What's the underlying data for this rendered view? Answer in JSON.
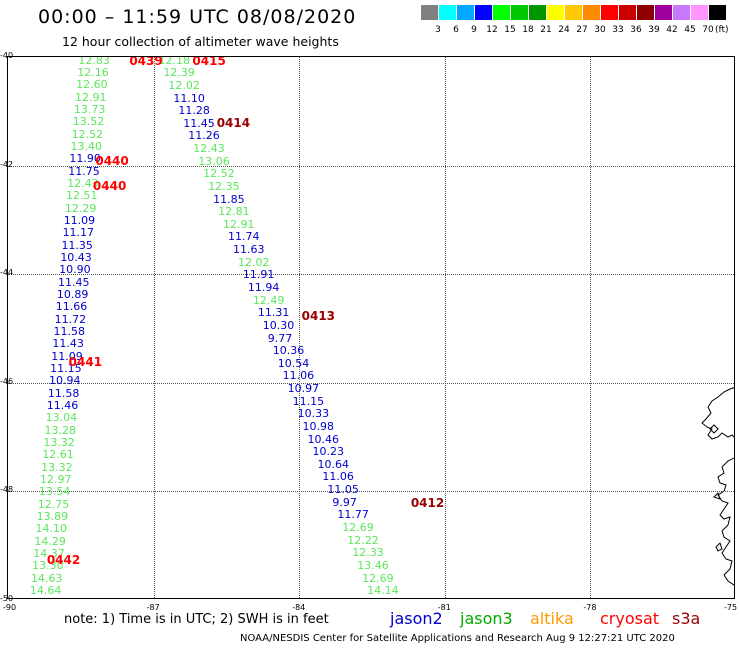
{
  "title": "00:00 – 11:59 UTC 08/08/2020",
  "subtitle": "12 hour collection of altimeter wave heights",
  "legend": {
    "unit": "(ft)",
    "bins": [
      {
        "label": "3",
        "color": "#808080"
      },
      {
        "label": "6",
        "color": "#00ffff"
      },
      {
        "label": "9",
        "color": "#00a8ff"
      },
      {
        "label": "12",
        "color": "#0000ff"
      },
      {
        "label": "15",
        "color": "#00ff00"
      },
      {
        "label": "18",
        "color": "#00c800"
      },
      {
        "label": "21",
        "color": "#009600"
      },
      {
        "label": "24",
        "color": "#ffff00"
      },
      {
        "label": "27",
        "color": "#ffc800"
      },
      {
        "label": "30",
        "color": "#ff8c00"
      },
      {
        "label": "33",
        "color": "#ff0000"
      },
      {
        "label": "36",
        "color": "#c80000"
      },
      {
        "label": "39",
        "color": "#8c0000"
      },
      {
        "label": "42",
        "color": "#a000a0"
      },
      {
        "label": "45",
        "color": "#c878ff"
      },
      {
        "label": "70",
        "color": "#ff96ff"
      },
      {
        "label": "",
        "color": "#000000"
      }
    ]
  },
  "axes": {
    "lon_labels": [
      "-90",
      "-87",
      "-84",
      "-81",
      "-78",
      "-75"
    ],
    "lat_labels": [
      "-40",
      "-42",
      "-44",
      "-46",
      "-48",
      "-50"
    ],
    "lon_range": [
      -90,
      -75
    ],
    "lat_range": [
      -40,
      -50
    ]
  },
  "colors": {
    "light_green": "#5ce65c",
    "dark_blue": "#0000cc",
    "red": "#ff0000",
    "dark_red": "#990000"
  },
  "tracks": [
    {
      "name": "track-a",
      "color": "light_green",
      "lon_start": -88.55,
      "lon_end": -89.55,
      "lat_start": -40.03,
      "lat_end": -49.8,
      "values": [
        "12.83",
        "12.16",
        "12.60",
        "12.91",
        "13.73",
        "13.52",
        "12.52",
        "13.40",
        "11.90",
        "11.75",
        "12.43",
        "12.51",
        "12.29",
        "11.09",
        "11.17",
        "11.35",
        "10.43",
        "10.90",
        "11.45",
        "10.89",
        "11.66",
        "11.72",
        "11.58",
        "11.43",
        "11.09",
        "11.15",
        "10.94",
        "11.58",
        "11.46",
        "13.04",
        "13.28",
        "13.32",
        "12.61",
        "13.32",
        "12.97",
        "13.54",
        "12.75",
        "13.89",
        "14.10",
        "14.29",
        "14.37",
        "13.30",
        "14.63",
        "14.64"
      ],
      "blue_indices": [
        8,
        9,
        13,
        14,
        15,
        16,
        17,
        18,
        19,
        20,
        21,
        22,
        23,
        24,
        25,
        26,
        27,
        28
      ]
    },
    {
      "name": "track-b",
      "color": "light_green",
      "lon_start": -86.9,
      "lon_end": -82.6,
      "lat_start": -40.03,
      "lat_end": -49.8,
      "values": [
        "12.18",
        "12.39",
        "12.02",
        "11.10",
        "11.28",
        "11.45",
        "11.26",
        "12.43",
        "13.06",
        "12.52",
        "12.35",
        "11.85",
        "12.81",
        "12.91",
        "11.74",
        "11.63",
        "12.02",
        "11.91",
        "11.94",
        "12.49",
        "11.31",
        "10.30",
        "9.77",
        "10.36",
        "10.54",
        "11.06",
        "10.97",
        "11.15",
        "10.33",
        "10.98",
        "10.46",
        "10.23",
        "10.64",
        "11.06",
        "11.05",
        "9.97",
        "11.77",
        "12.69",
        "12.22",
        "12.33",
        "13.46",
        "12.69",
        "14.14"
      ],
      "blue_indices": [
        3,
        4,
        5,
        6,
        11,
        14,
        15,
        17,
        18,
        20,
        21,
        22,
        23,
        24,
        25,
        26,
        27,
        28,
        29,
        30,
        31,
        32,
        33,
        34,
        35,
        36
      ]
    }
  ],
  "orbits": [
    {
      "label": "0439",
      "lon": -87.5,
      "lat": -40.05,
      "color": "red"
    },
    {
      "label": "0415",
      "lon": -86.2,
      "lat": -40.05,
      "color": "red"
    },
    {
      "label": "0414",
      "lon": -85.7,
      "lat": -41.2,
      "color": "dark_red"
    },
    {
      "label": "0440",
      "lon": -88.2,
      "lat": -41.9,
      "color": "red"
    },
    {
      "label": "0440",
      "lon": -88.25,
      "lat": -42.35,
      "color": "red"
    },
    {
      "label": "0413",
      "lon": -83.95,
      "lat": -44.75,
      "color": "dark_red"
    },
    {
      "label": "0441",
      "lon": -88.75,
      "lat": -45.6,
      "color": "red"
    },
    {
      "label": "0412",
      "lon": -81.7,
      "lat": -48.2,
      "color": "dark_red"
    },
    {
      "label": "0442",
      "lon": -89.2,
      "lat": -49.25,
      "color": "red"
    }
  ],
  "note": "note: 1) Time is in UTC; 2) SWH is in feet",
  "satellites": [
    {
      "label": "jason2",
      "color": "#0000cc"
    },
    {
      "label": "jason3",
      "color": "#00aa00"
    },
    {
      "label": "altika",
      "color": "#ff9900"
    },
    {
      "label": "cryosat",
      "color": "#ff0000"
    },
    {
      "label": "s3a",
      "color": "#990000"
    }
  ],
  "credit": "NOAA/NESDIS Center for Satellite Applications and Research    Aug  9 12:27:21 UTC 2020"
}
